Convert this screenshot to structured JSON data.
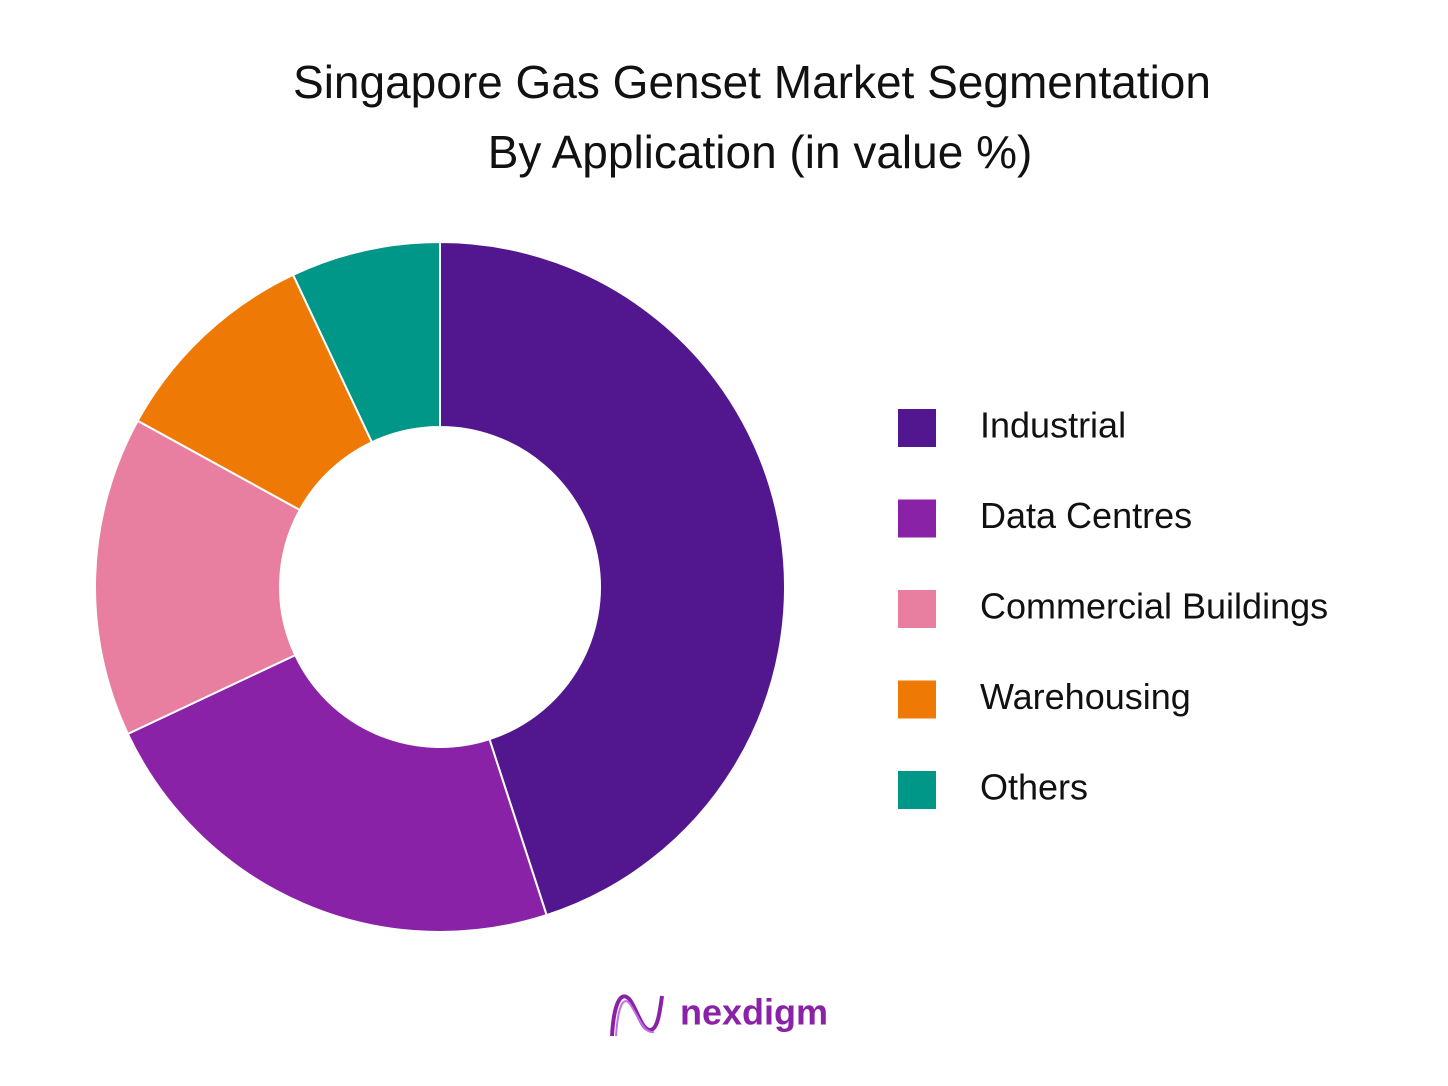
{
  "chart_data": {
    "type": "pie",
    "title": [
      "Singapore Gas Genset Market Segmentation",
      "By Application (in value %)"
    ],
    "categories": [
      "Industrial",
      "Data Centres",
      "Commercial Buildings",
      "Warehousing",
      "Others"
    ],
    "values": [
      45,
      23,
      15,
      10,
      7
    ],
    "colors": [
      "#52178f",
      "#8a22a8",
      "#e87fa0",
      "#ee7a05",
      "#009688"
    ],
    "donut": true,
    "legend": "right"
  },
  "brand": "nexdigm"
}
